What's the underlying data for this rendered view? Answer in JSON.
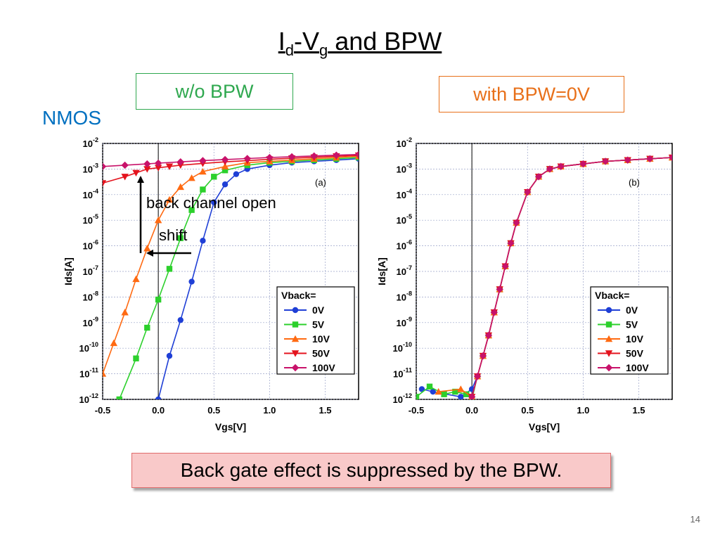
{
  "slide": {
    "title_I": "I",
    "title_d": "d",
    "title_dash": "-V",
    "title_g": "g",
    "title_rest": " and BPW",
    "nmos_label": "NMOS",
    "left_box_label": "w/o  BPW",
    "right_box_label": "with  BPW=0V",
    "note": "Back gate effect is suppressed by the BPW.",
    "page_number": "14",
    "annotation_back_channel": "back channel open",
    "annotation_shift": "shift"
  },
  "colors": {
    "green_box": "#2fa84f",
    "orange_box": "#e8701a",
    "nmos": "#0070c0",
    "series_0V": "#1f3fd6",
    "series_5V": "#2cd02c",
    "series_10V": "#ff6a12",
    "series_50V": "#e4131d",
    "series_100V": "#c8126a"
  },
  "chart_data": [
    {
      "type": "line",
      "panel_label": "(a)",
      "xlabel": "Vgs[V]",
      "ylabel": "Ids[A]",
      "xlim": [
        -0.5,
        1.8
      ],
      "ylim_log10": [
        -12,
        -2
      ],
      "log_y": true,
      "grid": true,
      "x_ticks": [
        "-0.5",
        "0.0",
        "0.5",
        "1.0",
        "1.5"
      ],
      "y_ticks_exp": [
        "-12",
        "-11",
        "-10",
        "-9",
        "-8",
        "-7",
        "-6",
        "-5",
        "-4",
        "-3",
        "-2"
      ],
      "legend_title": "Vback=",
      "legend_position": "bottom-right",
      "series": [
        {
          "name": "0V",
          "marker": "circle",
          "x": [
            0.0,
            0.1,
            0.2,
            0.3,
            0.4,
            0.5,
            0.6,
            0.7,
            0.8,
            1.0,
            1.2,
            1.4,
            1.6,
            1.8
          ],
          "log10_y": [
            -12.0,
            -10.3,
            -8.9,
            -7.4,
            -5.8,
            -4.3,
            -3.6,
            -3.2,
            -3.0,
            -2.85,
            -2.75,
            -2.7,
            -2.65,
            -2.6
          ]
        },
        {
          "name": "5V",
          "marker": "square",
          "x": [
            -0.35,
            -0.2,
            -0.1,
            0.0,
            0.1,
            0.2,
            0.3,
            0.4,
            0.5,
            0.6,
            0.8,
            1.0,
            1.2,
            1.4,
            1.6,
            1.8
          ],
          "log10_y": [
            -12.0,
            -10.4,
            -9.2,
            -8.1,
            -6.9,
            -5.7,
            -4.6,
            -3.8,
            -3.3,
            -3.05,
            -2.85,
            -2.75,
            -2.7,
            -2.65,
            -2.6,
            -2.55
          ]
        },
        {
          "name": "10V",
          "marker": "triangle-up",
          "x": [
            -0.5,
            -0.4,
            -0.3,
            -0.2,
            -0.1,
            0.0,
            0.1,
            0.2,
            0.3,
            0.4,
            0.6,
            0.8,
            1.0,
            1.2,
            1.4,
            1.6,
            1.8
          ],
          "log10_y": [
            -11.0,
            -9.8,
            -8.6,
            -7.3,
            -6.1,
            -5.0,
            -4.2,
            -3.7,
            -3.35,
            -3.1,
            -2.9,
            -2.75,
            -2.7,
            -2.65,
            -2.6,
            -2.55,
            -2.5
          ]
        },
        {
          "name": "50V",
          "marker": "triangle-down",
          "x": [
            -0.5,
            -0.3,
            -0.2,
            -0.1,
            0.0,
            0.1,
            0.2,
            0.4,
            0.6,
            0.8,
            1.0,
            1.2,
            1.4,
            1.6,
            1.8
          ],
          "log10_y": [
            -3.55,
            -3.3,
            -3.15,
            -3.0,
            -2.95,
            -2.9,
            -2.85,
            -2.78,
            -2.72,
            -2.67,
            -2.62,
            -2.58,
            -2.54,
            -2.5,
            -2.47
          ]
        },
        {
          "name": "100V",
          "marker": "diamond",
          "x": [
            -0.5,
            -0.3,
            -0.1,
            0.0,
            0.2,
            0.4,
            0.6,
            0.8,
            1.0,
            1.2,
            1.4,
            1.6,
            1.8
          ],
          "log10_y": [
            -2.9,
            -2.85,
            -2.8,
            -2.77,
            -2.72,
            -2.67,
            -2.63,
            -2.59,
            -2.55,
            -2.52,
            -2.49,
            -2.46,
            -2.43
          ]
        }
      ]
    },
    {
      "type": "line",
      "panel_label": "(b)",
      "xlabel": "Vgs[V]",
      "ylabel": "Ids[A]",
      "xlim": [
        -0.5,
        1.8
      ],
      "ylim_log10": [
        -12,
        -2
      ],
      "log_y": true,
      "grid": true,
      "x_ticks": [
        "-0.5",
        "0.0",
        "0.5",
        "1.0",
        "1.5"
      ],
      "y_ticks_exp": [
        "-12",
        "-11",
        "-10",
        "-9",
        "-8",
        "-7",
        "-6",
        "-5",
        "-4",
        "-3",
        "-2"
      ],
      "legend_title": "Vback=",
      "legend_position": "bottom-right",
      "series": [
        {
          "name": "0V",
          "marker": "circle",
          "x": [
            -0.45,
            -0.35,
            -0.1,
            0.0,
            0.05,
            0.1,
            0.15,
            0.2,
            0.25,
            0.3,
            0.35,
            0.4,
            0.5,
            0.6,
            0.7,
            0.8,
            1.0,
            1.2,
            1.4,
            1.6,
            1.8
          ],
          "log10_y": [
            -11.6,
            -11.7,
            -11.9,
            -11.6,
            -11.1,
            -10.3,
            -9.5,
            -8.6,
            -7.7,
            -6.8,
            -5.9,
            -5.1,
            -3.9,
            -3.3,
            -3.0,
            -2.9,
            -2.8,
            -2.7,
            -2.65,
            -2.6,
            -2.55
          ]
        },
        {
          "name": "5V",
          "marker": "square",
          "x": [
            -0.5,
            -0.38,
            -0.25,
            -0.15,
            -0.05,
            0.0,
            0.05,
            0.1,
            0.15,
            0.2,
            0.25,
            0.3,
            0.35,
            0.4,
            0.5,
            0.6,
            0.7,
            0.8,
            1.0,
            1.2,
            1.4,
            1.6,
            1.8
          ],
          "log10_y": [
            -11.9,
            -11.5,
            -11.8,
            -11.7,
            -11.8,
            -12.0,
            -11.1,
            -10.3,
            -9.5,
            -8.6,
            -7.7,
            -6.8,
            -5.9,
            -5.1,
            -3.9,
            -3.3,
            -3.0,
            -2.9,
            -2.8,
            -2.7,
            -2.65,
            -2.6,
            -2.55
          ]
        },
        {
          "name": "10V",
          "marker": "triangle-up",
          "x": [
            -0.3,
            -0.1,
            0.0,
            0.05,
            0.1,
            0.15,
            0.2,
            0.25,
            0.3,
            0.35,
            0.4,
            0.5,
            0.6,
            0.7,
            0.8,
            1.0,
            1.2,
            1.4,
            1.6,
            1.8
          ],
          "log10_y": [
            -11.7,
            -11.6,
            -11.9,
            -11.1,
            -10.3,
            -9.5,
            -8.6,
            -7.7,
            -6.8,
            -5.9,
            -5.1,
            -3.9,
            -3.3,
            -3.0,
            -2.9,
            -2.8,
            -2.7,
            -2.65,
            -2.6,
            -2.55
          ]
        },
        {
          "name": "50V",
          "marker": "triangle-down",
          "x": [
            0.0,
            0.05,
            0.1,
            0.15,
            0.2,
            0.25,
            0.3,
            0.35,
            0.4,
            0.5,
            0.6,
            0.7,
            0.8,
            1.0,
            1.2,
            1.4,
            1.6,
            1.8
          ],
          "log10_y": [
            -11.9,
            -11.1,
            -10.3,
            -9.5,
            -8.6,
            -7.7,
            -6.8,
            -5.9,
            -5.1,
            -3.9,
            -3.3,
            -3.0,
            -2.9,
            -2.8,
            -2.7,
            -2.65,
            -2.6,
            -2.55
          ]
        },
        {
          "name": "100V",
          "marker": "diamond",
          "x": [
            0.0,
            0.05,
            0.1,
            0.15,
            0.2,
            0.25,
            0.3,
            0.35,
            0.4,
            0.5,
            0.6,
            0.7,
            0.8,
            1.0,
            1.2,
            1.4,
            1.6,
            1.8
          ],
          "log10_y": [
            -11.9,
            -11.1,
            -10.3,
            -9.5,
            -8.6,
            -7.7,
            -6.8,
            -5.9,
            -5.1,
            -3.9,
            -3.3,
            -3.0,
            -2.9,
            -2.8,
            -2.7,
            -2.65,
            -2.6,
            -2.55
          ]
        }
      ]
    }
  ]
}
